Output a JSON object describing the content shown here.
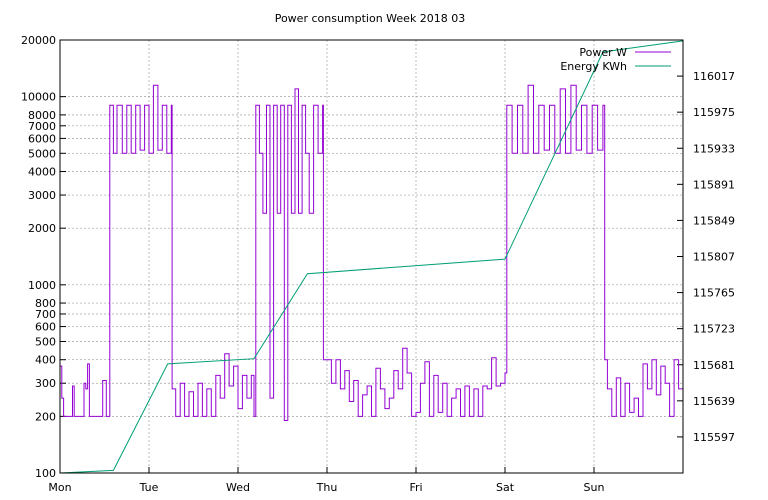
{
  "chart_data": {
    "type": "line",
    "title": "Power consumption Week 2018 03",
    "x_labels": [
      "Mon",
      "Tue",
      "Wed",
      "Thu",
      "Fri",
      "Sat",
      "Sun"
    ],
    "x_unit": "day",
    "x_range": [
      0,
      7
    ],
    "y_left": {
      "scale": "log",
      "range": [
        100,
        20000
      ],
      "ticks": [
        100,
        200,
        300,
        400,
        500,
        600,
        700,
        800,
        1000,
        2000,
        3000,
        4000,
        5000,
        6000,
        7000,
        8000,
        10000,
        20000
      ]
    },
    "y_right": {
      "range": [
        115555,
        116059
      ],
      "ticks": [
        115597,
        115639,
        115681,
        115723,
        115765,
        115807,
        115849,
        115891,
        115933,
        115975,
        116017
      ]
    },
    "grid": true,
    "legend_position": "top-right",
    "series": [
      {
        "name": "Power W",
        "axis": "left",
        "color": "#9400d3",
        "points": [
          [
            0.0,
            370
          ],
          [
            0.02,
            250
          ],
          [
            0.04,
            200
          ],
          [
            0.12,
            200
          ],
          [
            0.14,
            290
          ],
          [
            0.16,
            200
          ],
          [
            0.25,
            200
          ],
          [
            0.27,
            300
          ],
          [
            0.29,
            280
          ],
          [
            0.31,
            380
          ],
          [
            0.33,
            200
          ],
          [
            0.42,
            200
          ],
          [
            0.44,
            200
          ],
          [
            0.47,
            200
          ],
          [
            0.48,
            310
          ],
          [
            0.52,
            200
          ],
          [
            0.56,
            9000
          ],
          [
            0.6,
            5000
          ],
          [
            0.64,
            9000
          ],
          [
            0.7,
            5000
          ],
          [
            0.75,
            9000
          ],
          [
            0.8,
            5000
          ],
          [
            0.85,
            9000
          ],
          [
            0.9,
            5200
          ],
          [
            0.95,
            9000
          ],
          [
            1.0,
            5000
          ],
          [
            1.05,
            11500
          ],
          [
            1.1,
            5200
          ],
          [
            1.15,
            9000
          ],
          [
            1.2,
            5000
          ],
          [
            1.25,
            9000
          ],
          [
            1.26,
            280
          ],
          [
            1.3,
            200
          ],
          [
            1.35,
            300
          ],
          [
            1.4,
            200
          ],
          [
            1.45,
            270
          ],
          [
            1.5,
            200
          ],
          [
            1.55,
            300
          ],
          [
            1.6,
            200
          ],
          [
            1.65,
            280
          ],
          [
            1.7,
            200
          ],
          [
            1.75,
            330
          ],
          [
            1.8,
            250
          ],
          [
            1.85,
            430
          ],
          [
            1.9,
            290
          ],
          [
            1.95,
            370
          ],
          [
            2.0,
            220
          ],
          [
            2.05,
            330
          ],
          [
            2.1,
            250
          ],
          [
            2.15,
            330
          ],
          [
            2.18,
            200
          ],
          [
            2.2,
            9000
          ],
          [
            2.24,
            5000
          ],
          [
            2.28,
            2400
          ],
          [
            2.32,
            9000
          ],
          [
            2.36,
            250
          ],
          [
            2.4,
            9000
          ],
          [
            2.44,
            2400
          ],
          [
            2.48,
            9000
          ],
          [
            2.52,
            190
          ],
          [
            2.56,
            9000
          ],
          [
            2.6,
            2400
          ],
          [
            2.64,
            11000
          ],
          [
            2.68,
            2400
          ],
          [
            2.72,
            9000
          ],
          [
            2.76,
            5000
          ],
          [
            2.8,
            2400
          ],
          [
            2.85,
            9000
          ],
          [
            2.9,
            5000
          ],
          [
            2.95,
            9000
          ],
          [
            2.96,
            400
          ],
          [
            3.05,
            300
          ],
          [
            3.1,
            400
          ],
          [
            3.15,
            280
          ],
          [
            3.2,
            350
          ],
          [
            3.25,
            240
          ],
          [
            3.3,
            310
          ],
          [
            3.35,
            200
          ],
          [
            3.4,
            260
          ],
          [
            3.45,
            290
          ],
          [
            3.5,
            200
          ],
          [
            3.55,
            360
          ],
          [
            3.6,
            280
          ],
          [
            3.65,
            220
          ],
          [
            3.7,
            250
          ],
          [
            3.75,
            350
          ],
          [
            3.8,
            280
          ],
          [
            3.85,
            460
          ],
          [
            3.9,
            340
          ],
          [
            3.95,
            200
          ],
          [
            4.0,
            210
          ],
          [
            4.05,
            300
          ],
          [
            4.1,
            390
          ],
          [
            4.15,
            200
          ],
          [
            4.2,
            330
          ],
          [
            4.25,
            210
          ],
          [
            4.3,
            300
          ],
          [
            4.35,
            200
          ],
          [
            4.4,
            250
          ],
          [
            4.45,
            280
          ],
          [
            4.5,
            200
          ],
          [
            4.55,
            290
          ],
          [
            4.6,
            200
          ],
          [
            4.65,
            280
          ],
          [
            4.7,
            200
          ],
          [
            4.75,
            290
          ],
          [
            4.8,
            280
          ],
          [
            4.85,
            410
          ],
          [
            4.9,
            290
          ],
          [
            4.95,
            300
          ],
          [
            5.0,
            340
          ],
          [
            5.02,
            9000
          ],
          [
            5.08,
            5000
          ],
          [
            5.14,
            9000
          ],
          [
            5.2,
            5000
          ],
          [
            5.26,
            11500
          ],
          [
            5.32,
            5000
          ],
          [
            5.38,
            9000
          ],
          [
            5.44,
            5200
          ],
          [
            5.5,
            9000
          ],
          [
            5.56,
            5000
          ],
          [
            5.62,
            11000
          ],
          [
            5.68,
            5000
          ],
          [
            5.74,
            11500
          ],
          [
            5.8,
            5200
          ],
          [
            5.86,
            9000
          ],
          [
            5.92,
            5000
          ],
          [
            5.98,
            9000
          ],
          [
            6.04,
            5200
          ],
          [
            6.1,
            9000
          ],
          [
            6.12,
            400
          ],
          [
            6.15,
            280
          ],
          [
            6.2,
            200
          ],
          [
            6.25,
            320
          ],
          [
            6.3,
            200
          ],
          [
            6.35,
            300
          ],
          [
            6.4,
            210
          ],
          [
            6.45,
            250
          ],
          [
            6.5,
            200
          ],
          [
            6.55,
            380
          ],
          [
            6.6,
            280
          ],
          [
            6.65,
            400
          ],
          [
            6.7,
            260
          ],
          [
            6.75,
            370
          ],
          [
            6.8,
            300
          ],
          [
            6.85,
            200
          ],
          [
            6.9,
            400
          ],
          [
            6.95,
            280
          ],
          [
            7.0,
            280
          ]
        ]
      },
      {
        "name": "Energy KWh",
        "axis": "right",
        "color": "#009e73",
        "points": [
          [
            0.0,
            115555
          ],
          [
            0.6,
            115558
          ],
          [
            1.21,
            115682
          ],
          [
            2.18,
            115688
          ],
          [
            2.78,
            115787
          ],
          [
            5.0,
            115804
          ],
          [
            6.1,
            116045
          ],
          [
            7.0,
            116058
          ]
        ]
      }
    ]
  }
}
